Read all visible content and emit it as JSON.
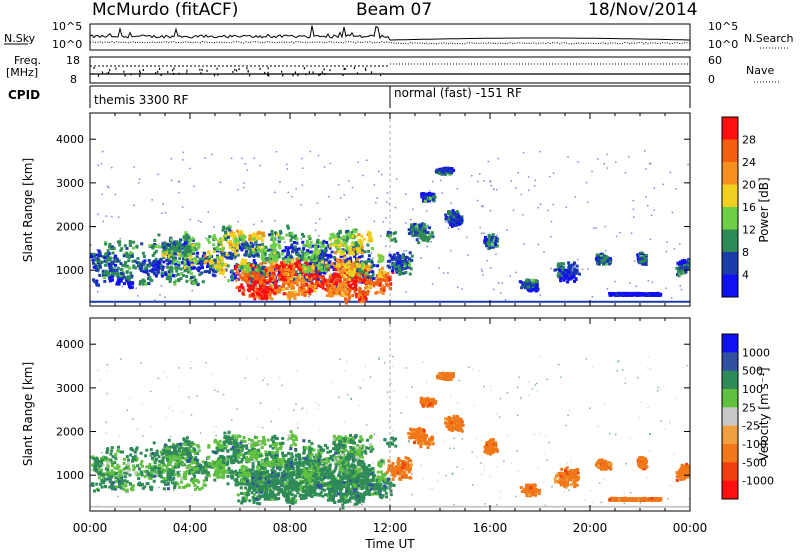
{
  "header": {
    "station": "McMurdo (fitACF)",
    "beam": "Beam 07",
    "date": "18/Nov/2014"
  },
  "strips": {
    "nsky_label": "N.Sky",
    "nsearch_label": "N.Search",
    "noise_ticks": [
      "10^5",
      "10^0"
    ],
    "freq_label_line1": "Freq.",
    "freq_label_line2": "[MHz]",
    "freq_ticks": [
      "18",
      "8"
    ],
    "nave_label": "Nave",
    "nave_ticks": [
      "60",
      "0"
    ],
    "cpid_label": "CPID",
    "cpid_segments": [
      "themis 3300 RF",
      "normal (fast) -151 RF"
    ]
  },
  "chart_data": [
    {
      "type": "heatmap",
      "quantity": "Power",
      "xlabel": "",
      "ylabel": "Slant Range [km]",
      "xlim": [
        0,
        24
      ],
      "ylim": [
        180,
        4600
      ],
      "y_ticks": [
        1000,
        2000,
        3000,
        4000
      ],
      "colorbar": {
        "label": "Power [dB]",
        "tick_labels": [
          "4",
          "8",
          "12",
          "16",
          "20",
          "24",
          "28"
        ],
        "colors": [
          "#1010f0",
          "#1c3caa",
          "#2e8b57",
          "#6ecf48",
          "#f0d020",
          "#f59020",
          "#f26010",
          "#ff1010"
        ]
      }
    },
    {
      "type": "heatmap",
      "quantity": "Velocity",
      "xlabel": "Time UT",
      "ylabel": "Slant Range [km]",
      "x_tick_labels": [
        "00:00",
        "04:00",
        "08:00",
        "12:00",
        "16:00",
        "20:00",
        "00:00"
      ],
      "xlim": [
        0,
        24
      ],
      "ylim": [
        180,
        4600
      ],
      "y_ticks": [
        1000,
        2000,
        3000,
        4000
      ],
      "colorbar": {
        "label": "Velocity [m s⁻¹]",
        "tick_labels": [
          "1000",
          "500",
          "100",
          "25",
          "-25",
          "-100",
          "-500",
          "-1000"
        ],
        "colors": [
          "#1010f0",
          "#3050a0",
          "#2e8b57",
          "#60c040",
          "#c8c8c8",
          "#f0a040",
          "#f07818",
          "#f04010",
          "#ff1010"
        ]
      }
    }
  ]
}
